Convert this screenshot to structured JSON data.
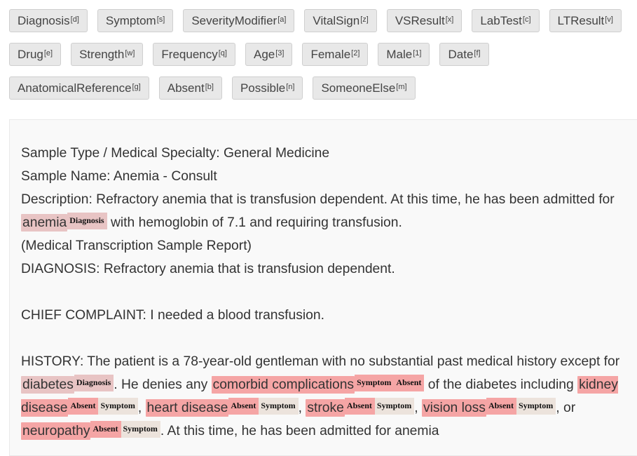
{
  "tags": [
    {
      "label": "Diagnosis",
      "key": "[d]"
    },
    {
      "label": "Symptom",
      "key": "[s]"
    },
    {
      "label": "SeverityModifier",
      "key": "[a]"
    },
    {
      "label": "VitalSign",
      "key": "[z]"
    },
    {
      "label": "VSResult",
      "key": "[x]"
    },
    {
      "label": "LabTest",
      "key": "[c]"
    },
    {
      "label": "LTResult",
      "key": "[v]"
    },
    {
      "label": "Drug",
      "key": "[e]"
    },
    {
      "label": "Strength",
      "key": "[w]"
    },
    {
      "label": "Frequency",
      "key": "[q]"
    },
    {
      "label": "Age",
      "key": "[3]"
    },
    {
      "label": "Female",
      "key": "[2]"
    },
    {
      "label": "Male",
      "key": "[1]"
    },
    {
      "label": "Date",
      "key": "[f]"
    },
    {
      "label": "AnatomicalReference",
      "key": "[g]"
    },
    {
      "label": "Absent",
      "key": "[b]"
    },
    {
      "label": "Possible",
      "key": "[n]"
    },
    {
      "label": "SomeoneElse",
      "key": "[m]"
    }
  ],
  "doc": {
    "sample_type": "Sample Type / Medical Specialty: General Medicine",
    "sample_name": "Sample Name: Anemia - Consult",
    "desc_1": "Description: Refractory anemia that is transfusion dependent. At this time, he has been admitted for ",
    "desc_ent": "anemia",
    "desc_2": " with hemoglobin of 7.1 and requiring transfusion.",
    "source": "(Medical Transcription Sample Report)",
    "diagnosis": "DIAGNOSIS: Refractory anemia that is transfusion dependent.",
    "chief_complaint": "CHIEF COMPLAINT: I needed a blood transfusion.",
    "hist_1": "HISTORY: The patient is a 78-year-old gentleman with no substantial past medical history except for ",
    "hist_ent_diabetes": "diabetes",
    "hist_2": ". He denies any ",
    "hist_ent_comorbid": "comorbid complications",
    "hist_3": " of the diabetes including ",
    "hist_ent_kidney": "kidney disease",
    "sep_comma": ", ",
    "hist_ent_heart": "heart disease",
    "hist_ent_stroke": "stroke",
    "hist_ent_vision": "vision loss",
    "sep_or": ", or ",
    "hist_ent_neuropathy": "neuropathy",
    "hist_4": ". At this time, he has been admitted for anemia"
  },
  "labels": {
    "diagnosis": "Diagnosis",
    "symptom": "Symptom",
    "absent": "Absent"
  }
}
